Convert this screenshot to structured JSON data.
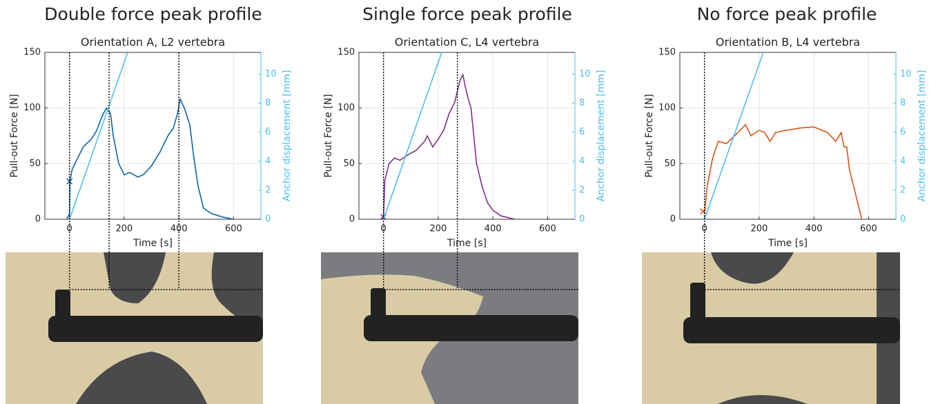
{
  "chart_data": [
    {
      "type": "line",
      "title": "Double force peak profile",
      "subtitle": "Orientation A, L2 vertebra",
      "xlabel": "Time [s]",
      "ylabel": "Pull-out Force [N]",
      "y2label": "Anchor displacement [mm]",
      "xlim": [
        -90,
        700
      ],
      "xticks": [
        0,
        200,
        400,
        600
      ],
      "ylim": [
        0,
        150
      ],
      "yticks": [
        0,
        50,
        100,
        150
      ],
      "y2lim": [
        0,
        11.5
      ],
      "y2ticks": [
        0,
        2,
        4,
        6,
        8,
        10
      ],
      "grid": true,
      "reference_lines": [
        0,
        145,
        400
      ],
      "series": [
        {
          "color": "#0b63a6",
          "x": [
            -10,
            0,
            2,
            10,
            30,
            50,
            80,
            100,
            120,
            135,
            150,
            160,
            180,
            200,
            220,
            250,
            270,
            300,
            330,
            360,
            380,
            395,
            405,
            420,
            440,
            455,
            470,
            490,
            520,
            560,
            600
          ],
          "values": [
            0,
            5,
            35,
            45,
            55,
            65,
            72,
            80,
            93,
            100,
            95,
            75,
            50,
            40,
            42,
            38,
            40,
            48,
            60,
            75,
            82,
            95,
            108,
            100,
            85,
            55,
            30,
            10,
            5,
            2,
            0
          ]
        },
        {
          "color": "#0b63a6",
          "marker": "x",
          "x": [
            0
          ],
          "values": [
            34
          ]
        },
        {
          "color": "#4dbeee",
          "axis": "y2",
          "x": [
            0,
            213
          ],
          "values": [
            0,
            11.5
          ]
        }
      ]
    },
    {
      "type": "line",
      "title": "Single force peak profile",
      "subtitle": "Orientation C, L4 vertebra",
      "xlabel": "Time [s]",
      "ylabel": "Pull-out Force [N]",
      "y2label": "Anchor displacement [mm]",
      "xlim": [
        -90,
        700
      ],
      "xticks": [
        0,
        200,
        400,
        600
      ],
      "ylim": [
        0,
        150
      ],
      "yticks": [
        0,
        50,
        100,
        150
      ],
      "y2lim": [
        0,
        11.5
      ],
      "y2ticks": [
        0,
        2,
        4,
        6,
        8,
        10
      ],
      "grid": true,
      "reference_lines": [
        0,
        270
      ],
      "series": [
        {
          "color": "#7e2f8e",
          "x": [
            -10,
            0,
            5,
            20,
            40,
            60,
            90,
            120,
            150,
            160,
            180,
            200,
            220,
            240,
            260,
            280,
            290,
            300,
            310,
            320,
            330,
            340,
            360,
            380,
            400,
            430,
            480
          ],
          "values": [
            0,
            3,
            35,
            50,
            55,
            53,
            58,
            62,
            70,
            75,
            65,
            72,
            80,
            95,
            105,
            125,
            130,
            118,
            108,
            100,
            75,
            50,
            30,
            15,
            8,
            3,
            0
          ]
        },
        {
          "color": "#7e2f8e",
          "marker": "x",
          "x": [
            0
          ],
          "values": [
            2
          ]
        },
        {
          "color": "#4dbeee",
          "axis": "y2",
          "x": [
            0,
            213
          ],
          "values": [
            0,
            11.5
          ]
        }
      ]
    },
    {
      "type": "line",
      "title": "No force peak profile",
      "subtitle": "Orientation B, L4 vertebra",
      "xlabel": "Time [s]",
      "ylabel": "Pull-out Force [N]",
      "y2label": "Anchor displacement [mm]",
      "xlim": [
        -90,
        700
      ],
      "xticks": [
        0,
        200,
        400,
        600
      ],
      "ylim": [
        0,
        150
      ],
      "yticks": [
        0,
        50,
        100,
        150
      ],
      "y2lim": [
        0,
        11.5
      ],
      "y2ticks": [
        0,
        2,
        4,
        6,
        8,
        10
      ],
      "grid": true,
      "reference_lines": [
        0
      ],
      "series": [
        {
          "color": "#d95319",
          "x": [
            0,
            10,
            30,
            50,
            80,
            110,
            150,
            170,
            200,
            220,
            240,
            260,
            300,
            350,
            400,
            450,
            480,
            500,
            510,
            520,
            530,
            550,
            570,
            575
          ],
          "values": [
            5,
            30,
            55,
            70,
            68,
            75,
            85,
            75,
            80,
            78,
            70,
            78,
            80,
            82,
            83,
            78,
            70,
            78,
            65,
            65,
            45,
            25,
            5,
            0
          ]
        },
        {
          "color": "#d95319",
          "marker": "x",
          "x": [
            -5
          ],
          "values": [
            7
          ]
        },
        {
          "color": "#4dbeee",
          "axis": "y2",
          "x": [
            0,
            215
          ],
          "values": [
            0,
            11.5
          ]
        }
      ]
    }
  ]
}
